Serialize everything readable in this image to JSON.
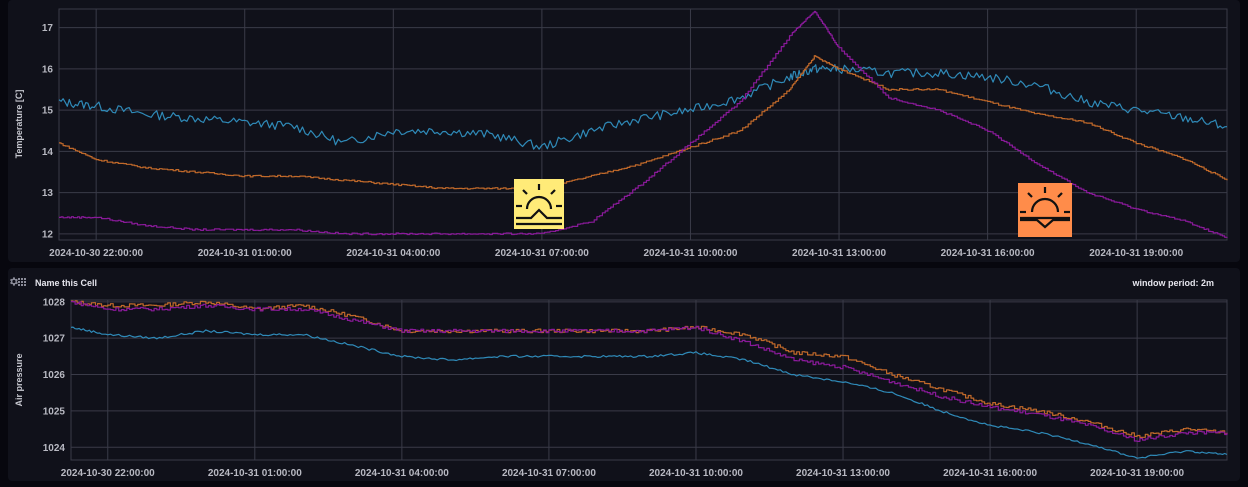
{
  "colors": {
    "background": "#07070e",
    "panel": "#10111a",
    "grid": "#3a3b48",
    "series_blue": "#2f8ab8",
    "series_orange": "#c0692a",
    "series_purple": "#8a1a9a",
    "series_red": "#d8503a",
    "sunrise_icon_bg": "#ffeb78",
    "sunset_icon_bg": "#ff8c4a"
  },
  "temperature_cell": {
    "ylabel": "Temperature [C]",
    "yticks": [
      "12",
      "13",
      "14",
      "15",
      "16",
      "17"
    ],
    "xticks": [
      "2024-10-30 22:00:00",
      "2024-10-31 01:00:00",
      "2024-10-31 04:00:00",
      "2024-10-31 07:00:00",
      "2024-10-31 10:00:00",
      "2024-10-31 13:00:00",
      "2024-10-31 16:00:00",
      "2024-10-31 19:00:00"
    ],
    "annotations": [
      {
        "icon": "sunrise-icon",
        "time": "≈07:00"
      },
      {
        "icon": "sunset-icon",
        "time": "≈17:40"
      }
    ]
  },
  "pressure_cell": {
    "title": "Name this Cell",
    "window_period": "window period: 2m",
    "ylabel": "Air pressure",
    "yticks": [
      "1024",
      "1025",
      "1026",
      "1027",
      "1028"
    ],
    "xticks": [
      "2024-10-30 22:00:00",
      "2024-10-31 01:00:00",
      "2024-10-31 04:00:00",
      "2024-10-31 07:00:00",
      "2024-10-31 10:00:00",
      "2024-10-31 13:00:00",
      "2024-10-31 16:00:00",
      "2024-10-31 19:00:00"
    ]
  },
  "chart_data": [
    {
      "type": "line",
      "title": "",
      "xlabel": "",
      "ylabel": "Temperature [C]",
      "ylim": [
        11.9,
        17.4
      ],
      "grid": true,
      "legend": "none",
      "x": [
        "21:15",
        "22:00",
        "23:00",
        "00:00",
        "01:00",
        "02:00",
        "03:00",
        "04:00",
        "05:00",
        "06:00",
        "07:00",
        "08:00",
        "09:00",
        "10:00",
        "11:00",
        "12:00",
        "12:30",
        "13:00",
        "14:00",
        "15:00",
        "16:00",
        "17:00",
        "18:00",
        "19:00",
        "20:00",
        "20:50"
      ],
      "series": [
        {
          "name": "blue",
          "color": "#2f8ab8",
          "values": [
            15.2,
            15.1,
            14.9,
            14.8,
            14.7,
            14.6,
            14.2,
            14.5,
            14.5,
            14.4,
            14.1,
            14.5,
            14.8,
            15.0,
            15.3,
            15.8,
            16.0,
            16.0,
            15.9,
            15.9,
            15.8,
            15.6,
            15.2,
            15.0,
            14.8,
            14.6
          ]
        },
        {
          "name": "orange",
          "color": "#c0692a",
          "values": [
            14.2,
            13.8,
            13.6,
            13.5,
            13.4,
            13.4,
            13.3,
            13.2,
            13.1,
            13.1,
            13.1,
            13.4,
            13.7,
            14.1,
            14.5,
            15.5,
            16.3,
            16.0,
            15.5,
            15.5,
            15.2,
            14.9,
            14.7,
            14.2,
            13.8,
            13.3
          ]
        },
        {
          "name": "purple",
          "color": "#8a1a9a",
          "values": [
            12.4,
            12.4,
            12.2,
            12.1,
            12.1,
            12.1,
            12.0,
            12.0,
            12.0,
            12.0,
            12.0,
            12.3,
            13.2,
            14.2,
            15.2,
            16.8,
            17.4,
            16.5,
            15.3,
            15.0,
            14.5,
            13.7,
            13.0,
            12.6,
            12.3,
            11.9
          ]
        }
      ]
    },
    {
      "type": "line",
      "title": "Name this Cell",
      "xlabel": "",
      "ylabel": "Air pressure",
      "ylim": [
        1023.7,
        1028.0
      ],
      "grid": true,
      "legend": "none",
      "x": [
        "21:15",
        "22:00",
        "23:00",
        "00:00",
        "01:00",
        "02:00",
        "03:00",
        "04:00",
        "05:00",
        "06:00",
        "07:00",
        "08:00",
        "09:00",
        "10:00",
        "11:00",
        "12:00",
        "13:00",
        "14:00",
        "15:00",
        "16:00",
        "17:00",
        "18:00",
        "19:00",
        "20:00",
        "20:50"
      ],
      "series": [
        {
          "name": "orange",
          "color": "#c0692a",
          "values": [
            1028.0,
            1027.9,
            1027.9,
            1028.0,
            1027.8,
            1027.9,
            1027.6,
            1027.2,
            1027.2,
            1027.2,
            1027.2,
            1027.2,
            1027.2,
            1027.3,
            1027.1,
            1026.6,
            1026.5,
            1026.0,
            1025.6,
            1025.2,
            1025.0,
            1024.7,
            1024.3,
            1024.5,
            1024.4
          ]
        },
        {
          "name": "purple",
          "color": "#8a1a9a",
          "values": [
            1028.0,
            1027.8,
            1027.8,
            1027.9,
            1027.8,
            1027.8,
            1027.5,
            1027.2,
            1027.2,
            1027.2,
            1027.2,
            1027.2,
            1027.2,
            1027.3,
            1026.9,
            1026.4,
            1026.2,
            1025.8,
            1025.4,
            1025.1,
            1024.9,
            1024.6,
            1024.2,
            1024.4,
            1024.4
          ]
        },
        {
          "name": "blue",
          "color": "#2f8ab8",
          "values": [
            1027.3,
            1027.1,
            1027.0,
            1027.2,
            1027.1,
            1027.1,
            1026.8,
            1026.5,
            1026.4,
            1026.5,
            1026.5,
            1026.5,
            1026.5,
            1026.6,
            1026.4,
            1026.0,
            1025.8,
            1025.5,
            1025.0,
            1024.6,
            1024.4,
            1024.1,
            1023.7,
            1023.9,
            1023.8
          ]
        }
      ]
    }
  ]
}
